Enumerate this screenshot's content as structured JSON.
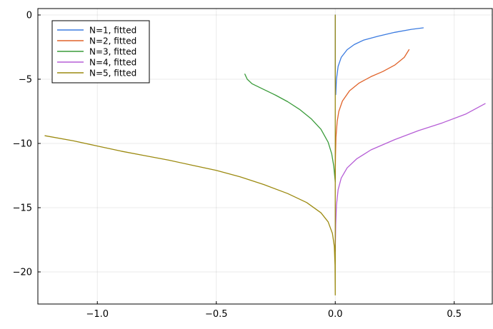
{
  "chart_data": {
    "type": "line",
    "title": "",
    "xlabel": "",
    "ylabel": "",
    "xlim": [
      -1.25,
      0.66
    ],
    "ylim": [
      -22.5,
      0.5
    ],
    "grid": true,
    "legend_position": "top-left",
    "x_ticks": [
      {
        "value": -1.0,
        "label": "−1.0"
      },
      {
        "value": -0.5,
        "label": "−0.5"
      },
      {
        "value": 0.0,
        "label": "0.0"
      },
      {
        "value": 0.5,
        "label": "0.5"
      }
    ],
    "y_ticks": [
      {
        "value": 0,
        "label": "0"
      },
      {
        "value": -5,
        "label": "−5"
      },
      {
        "value": -10,
        "label": "−10"
      },
      {
        "value": -15,
        "label": "−15"
      },
      {
        "value": -20,
        "label": "−20"
      }
    ],
    "series": [
      {
        "name": "N=1, fitted",
        "color": "#3b7be0",
        "points": [
          [
            0.0,
            0.0
          ],
          [
            0.0,
            -2.0
          ],
          [
            0.0,
            -5.0
          ],
          [
            0.002,
            -6.2
          ],
          [
            0.005,
            -5.0
          ],
          [
            0.012,
            -4.0
          ],
          [
            0.025,
            -3.3
          ],
          [
            0.05,
            -2.7
          ],
          [
            0.08,
            -2.3
          ],
          [
            0.12,
            -1.95
          ],
          [
            0.18,
            -1.65
          ],
          [
            0.25,
            -1.35
          ],
          [
            0.32,
            -1.12
          ],
          [
            0.37,
            -1.0
          ]
        ]
      },
      {
        "name": "N=2, fitted",
        "color": "#e0632a",
        "points": [
          [
            0.0,
            -12.8
          ],
          [
            0.001,
            -11.0
          ],
          [
            0.003,
            -9.5
          ],
          [
            0.008,
            -8.3
          ],
          [
            0.015,
            -7.5
          ],
          [
            0.03,
            -6.7
          ],
          [
            0.06,
            -5.9
          ],
          [
            0.1,
            -5.3
          ],
          [
            0.15,
            -4.8
          ],
          [
            0.2,
            -4.4
          ],
          [
            0.25,
            -3.9
          ],
          [
            0.29,
            -3.3
          ],
          [
            0.31,
            -2.7
          ]
        ]
      },
      {
        "name": "N=3, fitted",
        "color": "#3a9b3a",
        "points": [
          [
            -0.38,
            -4.6
          ],
          [
            -0.37,
            -5.0
          ],
          [
            -0.35,
            -5.35
          ],
          [
            -0.3,
            -5.8
          ],
          [
            -0.25,
            -6.25
          ],
          [
            -0.2,
            -6.75
          ],
          [
            -0.15,
            -7.35
          ],
          [
            -0.1,
            -8.1
          ],
          [
            -0.06,
            -8.9
          ],
          [
            -0.03,
            -9.9
          ],
          [
            -0.015,
            -10.8
          ],
          [
            -0.006,
            -11.8
          ],
          [
            -0.002,
            -12.6
          ],
          [
            0.0,
            -13.0
          ]
        ]
      },
      {
        "name": "N=4, fitted",
        "color": "#b65ed6",
        "points": [
          [
            0.0,
            -18.4
          ],
          [
            0.002,
            -16.3
          ],
          [
            0.005,
            -14.8
          ],
          [
            0.012,
            -13.6
          ],
          [
            0.025,
            -12.7
          ],
          [
            0.05,
            -11.9
          ],
          [
            0.09,
            -11.2
          ],
          [
            0.15,
            -10.5
          ],
          [
            0.25,
            -9.7
          ],
          [
            0.35,
            -9.0
          ],
          [
            0.45,
            -8.4
          ],
          [
            0.55,
            -7.7
          ],
          [
            0.63,
            -6.9
          ]
        ]
      },
      {
        "name": "N=5, fitted",
        "color": "#9c8a10",
        "points": [
          [
            -1.22,
            -9.4
          ],
          [
            -1.1,
            -9.8
          ],
          [
            -1.0,
            -10.2
          ],
          [
            -0.9,
            -10.6
          ],
          [
            -0.8,
            -10.95
          ],
          [
            -0.7,
            -11.3
          ],
          [
            -0.6,
            -11.7
          ],
          [
            -0.5,
            -12.1
          ],
          [
            -0.4,
            -12.6
          ],
          [
            -0.3,
            -13.2
          ],
          [
            -0.2,
            -13.9
          ],
          [
            -0.12,
            -14.6
          ],
          [
            -0.06,
            -15.4
          ],
          [
            -0.03,
            -16.1
          ],
          [
            -0.012,
            -17.0
          ],
          [
            -0.004,
            -18.0
          ],
          [
            -0.001,
            -19.5
          ],
          [
            0.0,
            -21.8
          ],
          [
            0.0,
            -10.0
          ],
          [
            0.0,
            0.0
          ]
        ]
      }
    ]
  }
}
